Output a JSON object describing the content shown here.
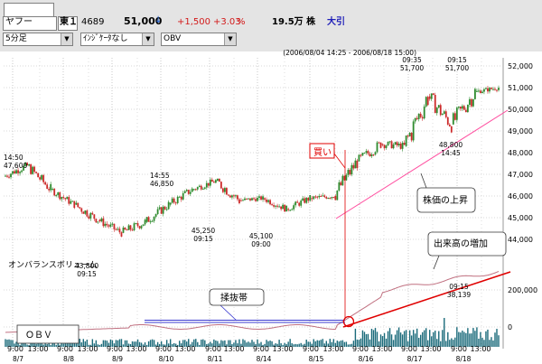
{
  "header": {
    "name": "ヤフー",
    "market": "東１",
    "code": "4689",
    "price": "51,000",
    "change": "+1,500",
    "change_pct": "+3.03",
    "pct_unit": "%",
    "volume": "19.5万 株",
    "status": "大引",
    "period": "(2006/08/04 14:25 - 2006/08/18 15:00)"
  },
  "selectors": {
    "interval": "5分足",
    "indicator": "ｲﾝｼﾞｹｰﾀなし",
    "sub_indicator": "OBV"
  },
  "colors": {
    "up_candle": "#2e8b2e",
    "down_candle": "#cc2a2a",
    "obv_line": "#c07080",
    "volume_bar": "#1a6a7a",
    "trend_pink": "#ff4fa0",
    "trend_red": "#e00000",
    "box_blue": "#3b3bd0"
  },
  "chart_data": {
    "type": "candlestick",
    "title": "",
    "xlabel": "",
    "ylabel": "",
    "x_tick_labels": [
      "9:00",
      "13:00",
      "9:00",
      "13:00",
      "9:00",
      "13:00",
      "9:00",
      "13:00",
      "9:00",
      "13:00",
      "9:00",
      "13:00",
      "9:00",
      "13:00",
      "9:00",
      "13:00",
      "9:00",
      "13:00",
      "9:00",
      "13:00"
    ],
    "date_labels": [
      "8/7",
      "8/8",
      "8/9",
      "8/10",
      "8/11",
      "8/14",
      "8/15",
      "8/16",
      "8/17",
      "8/18"
    ],
    "price_ticks": [
      "52,000",
      "51,000",
      "50,000",
      "49,000",
      "48,000",
      "47,000",
      "46,000",
      "45,000",
      "44,000"
    ],
    "volume_ticks": [
      "200,000",
      "0"
    ],
    "price_annotations": [
      {
        "time": "14:50",
        "price": "47,600"
      },
      {
        "time": "14:55",
        "price": "46,850"
      },
      {
        "time": "09:15",
        "price": "43,800"
      },
      {
        "time": "09:15",
        "price": "45,250"
      },
      {
        "time": "09:00",
        "price": "45,100"
      },
      {
        "time": "09:35",
        "price": "51,700"
      },
      {
        "time": "09:15",
        "price": "51,700"
      },
      {
        "time": "14:45",
        "price": "48,800"
      },
      {
        "time": "09:15",
        "volume": "38,139"
      }
    ],
    "callouts": [
      "買い",
      "株価の上昇",
      "出来高の増加",
      "揉抜帯",
      "オンバランスボリューム",
      "ＯＢＶ"
    ],
    "price_range": [
      43000,
      52000
    ],
    "sessions": [
      {
        "label": "8/4 pm",
        "open": 46900,
        "close": 47400,
        "high": 47700,
        "low": 46700
      },
      {
        "label": "8/7 am",
        "open": 47400,
        "close": 46300,
        "high": 47500,
        "low": 46000
      },
      {
        "label": "8/7 pm",
        "open": 46300,
        "close": 45600,
        "high": 46400,
        "low": 45400
      },
      {
        "label": "8/8 am",
        "open": 45600,
        "close": 44900,
        "high": 45800,
        "low": 44600
      },
      {
        "label": "8/8 pm",
        "open": 44900,
        "close": 44300,
        "high": 45200,
        "low": 44100
      },
      {
        "label": "8/9 am",
        "open": 44300,
        "close": 44800,
        "high": 45000,
        "low": 43800
      },
      {
        "label": "8/9 pm",
        "open": 44800,
        "close": 45600,
        "high": 45800,
        "low": 44600
      },
      {
        "label": "8/10 am",
        "open": 45600,
        "close": 46300,
        "high": 46500,
        "low": 45400
      },
      {
        "label": "8/10 pm",
        "open": 46300,
        "close": 46700,
        "high": 46850,
        "low": 46000
      },
      {
        "label": "8/11 am",
        "open": 46700,
        "close": 45800,
        "high": 46800,
        "low": 45250
      },
      {
        "label": "8/11 pm",
        "open": 45800,
        "close": 45900,
        "high": 46100,
        "low": 45500
      },
      {
        "label": "8/14 am",
        "open": 45900,
        "close": 45400,
        "high": 46000,
        "low": 45100
      },
      {
        "label": "8/14 pm",
        "open": 45400,
        "close": 45900,
        "high": 46100,
        "low": 45200
      },
      {
        "label": "8/15 am",
        "open": 45900,
        "close": 46000,
        "high": 46300,
        "low": 45600
      },
      {
        "label": "8/15 pm",
        "open": 46000,
        "close": 47600,
        "high": 48000,
        "low": 45800
      },
      {
        "label": "8/16 am",
        "open": 47600,
        "close": 48400,
        "high": 48600,
        "low": 47200
      },
      {
        "label": "8/16 pm",
        "open": 48400,
        "close": 48300,
        "high": 49000,
        "low": 48000
      },
      {
        "label": "8/17 am",
        "open": 48300,
        "close": 50600,
        "high": 51700,
        "low": 48200
      },
      {
        "label": "8/17 pm",
        "open": 50600,
        "close": 49300,
        "high": 51000,
        "low": 48800
      },
      {
        "label": "8/18 am",
        "open": 49300,
        "close": 50800,
        "high": 51700,
        "low": 49200
      },
      {
        "label": "8/18 pm",
        "open": 50800,
        "close": 51000,
        "high": 51200,
        "low": 50600
      }
    ]
  }
}
